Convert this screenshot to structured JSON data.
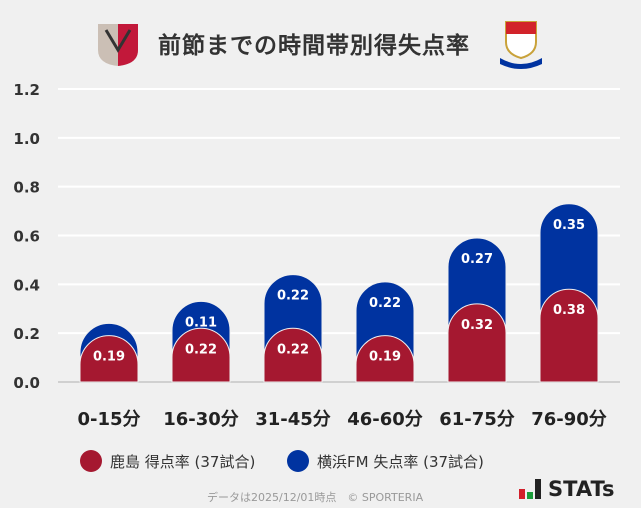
{
  "title": "前節までの時間帯別得失点率",
  "logos": {
    "left": "Kashima Antlers",
    "right": "Yokohama F·Marinos"
  },
  "chart_data": {
    "type": "bar",
    "stacked": true,
    "categories": [
      "0-15分",
      "16-30分",
      "31-45分",
      "46-60分",
      "61-75分",
      "76-90分"
    ],
    "series": [
      {
        "name": "鹿島 得点率 (37試合)",
        "color": "#a51830",
        "values": [
          0.19,
          0.22,
          0.22,
          0.19,
          0.32,
          0.38
        ],
        "labels": [
          "0.19",
          "0.22",
          "0.22",
          "0.19",
          "0.32",
          "0.38"
        ]
      },
      {
        "name": "横浜FM 失点率 (37試合)",
        "color": "#0033a0",
        "values": [
          0.05,
          0.11,
          0.22,
          0.22,
          0.27,
          0.35
        ],
        "labels": [
          "",
          "0.11",
          "0.22",
          "0.22",
          "0.27",
          "0.35"
        ]
      }
    ],
    "ylim": [
      0,
      1.2
    ],
    "yticks": [
      "0.0",
      "0.2",
      "0.4",
      "0.6",
      "0.8",
      "1.0",
      "1.2"
    ],
    "grid": true,
    "legend": "bottom"
  },
  "footer": "データは2025/12/01時点　© SPORTERIA",
  "brand": "STATs"
}
